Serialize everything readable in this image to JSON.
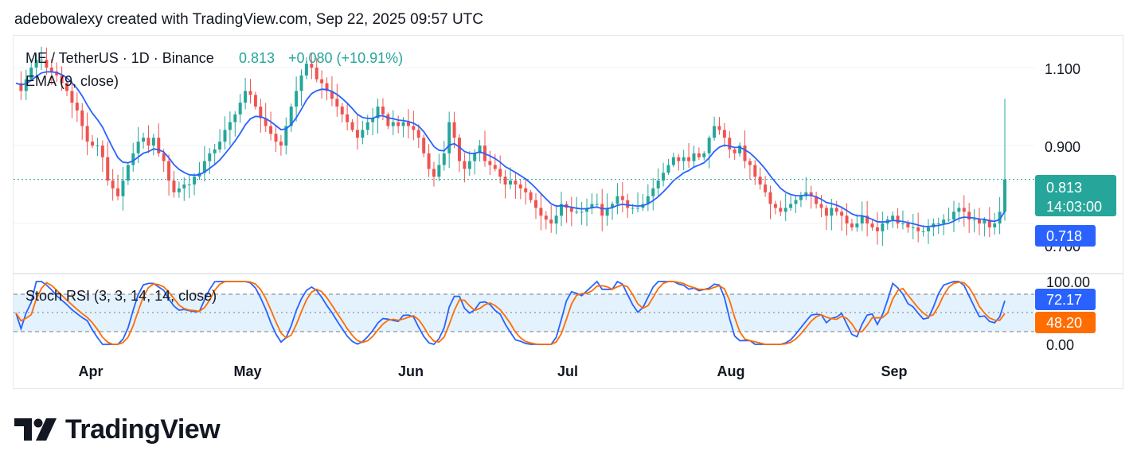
{
  "header": {
    "text": "adebowalexy created with TradingView.com, Sep 22, 2025 09:57 UTC"
  },
  "brand": {
    "name": "TradingView"
  },
  "colors": {
    "up": "#26a69a",
    "down": "#ef5350",
    "ema": "#2962ff",
    "k": "#2962ff",
    "d": "#ff6d00",
    "band": "#e3f2fd"
  },
  "legend": {
    "symbol": "ME / TetherUS · 1D · Binance",
    "price": "0.813",
    "change": "+0.080 (+10.91%)",
    "ema": "EMA (9, close)",
    "stoch": "Stoch RSI (3, 3, 14, 14, close)"
  },
  "price_axis": {
    "ticks": [
      "1.100",
      "0.900",
      "0.700"
    ]
  },
  "rsi_axis": {
    "ticks": [
      "100.00",
      "0.00"
    ]
  },
  "badges": {
    "last_price": "0.813",
    "countdown": "14:03:00",
    "ema": "0.718",
    "k": "72.17",
    "d": "48.20"
  },
  "time_axis": {
    "labels": [
      "Apr",
      "May",
      "Jun",
      "Jul",
      "Aug",
      "Sep"
    ]
  },
  "chart_data": {
    "type": "candlestick",
    "title": "ME / TetherUS · 1D · Binance",
    "start_date": "2025-03-22",
    "end_date": "2025-09-22",
    "ylim": [
      0.665,
      1.17
    ],
    "close": [
      1.06,
      1.04,
      1.07,
      1.1,
      1.12,
      1.12,
      1.1,
      1.09,
      1.08,
      1.06,
      1.04,
      1.01,
      0.99,
      0.95,
      0.91,
      0.9,
      0.9,
      0.87,
      0.81,
      0.79,
      0.77,
      0.81,
      0.85,
      0.88,
      0.91,
      0.92,
      0.9,
      0.92,
      0.88,
      0.86,
      0.81,
      0.78,
      0.79,
      0.8,
      0.8,
      0.82,
      0.83,
      0.86,
      0.88,
      0.89,
      0.91,
      0.94,
      0.96,
      0.98,
      1.01,
      1.04,
      1.03,
      1.0,
      0.97,
      0.95,
      0.93,
      0.91,
      0.9,
      0.95,
      1.0,
      1.04,
      1.08,
      1.11,
      1.1,
      1.07,
      1.06,
      1.04,
      1.02,
      1.0,
      0.98,
      0.96,
      0.94,
      0.92,
      0.94,
      0.96,
      0.97,
      1.0,
      0.98,
      0.95,
      0.96,
      0.95,
      0.96,
      0.95,
      0.94,
      0.92,
      0.88,
      0.84,
      0.82,
      0.85,
      0.88,
      0.96,
      0.92,
      0.86,
      0.84,
      0.86,
      0.88,
      0.9,
      0.86,
      0.85,
      0.84,
      0.82,
      0.8,
      0.81,
      0.8,
      0.79,
      0.78,
      0.76,
      0.74,
      0.72,
      0.71,
      0.7,
      0.72,
      0.75,
      0.74,
      0.73,
      0.73,
      0.73,
      0.74,
      0.75,
      0.75,
      0.72,
      0.74,
      0.75,
      0.77,
      0.76,
      0.74,
      0.74,
      0.74,
      0.75,
      0.77,
      0.79,
      0.81,
      0.83,
      0.85,
      0.87,
      0.86,
      0.87,
      0.86,
      0.88,
      0.87,
      0.88,
      0.92,
      0.95,
      0.94,
      0.92,
      0.89,
      0.88,
      0.9,
      0.86,
      0.85,
      0.82,
      0.8,
      0.78,
      0.75,
      0.74,
      0.73,
      0.74,
      0.75,
      0.76,
      0.77,
      0.78,
      0.77,
      0.75,
      0.74,
      0.72,
      0.74,
      0.73,
      0.72,
      0.7,
      0.69,
      0.7,
      0.72,
      0.7,
      0.69,
      0.68,
      0.7,
      0.71,
      0.72,
      0.7,
      0.7,
      0.69,
      0.69,
      0.68,
      0.68,
      0.69,
      0.7,
      0.7,
      0.71,
      0.71,
      0.73,
      0.74,
      0.73,
      0.71,
      0.71,
      0.7,
      0.71,
      0.69,
      0.7,
      0.73,
      0.813
    ],
    "series": [
      {
        "name": "EMA (9, close)",
        "latest": 0.718
      },
      {
        "name": "%K",
        "latest": 72.17
      },
      {
        "name": "%D",
        "latest": 48.2
      }
    ]
  }
}
